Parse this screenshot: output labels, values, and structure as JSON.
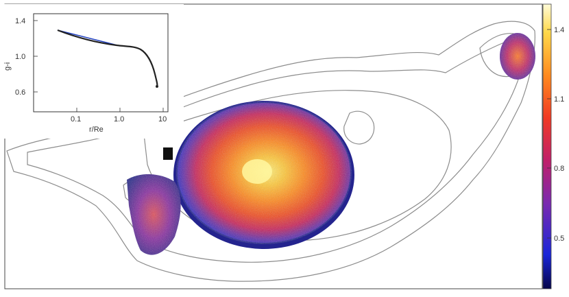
{
  "inset": {
    "ylabel": "g-i",
    "xlabel": "r/Re",
    "yticks": [
      "1.4",
      "1.0",
      "0.6"
    ],
    "xticks": [
      "0.1",
      "1.0",
      "10"
    ]
  },
  "colorbar": {
    "ticks": [
      "1.4",
      "1.1",
      "0.8",
      "0.5"
    ]
  },
  "colors": {
    "contour": "#8c8c8c",
    "fit_line": "#1f3fbf",
    "profile": "#222222"
  }
}
